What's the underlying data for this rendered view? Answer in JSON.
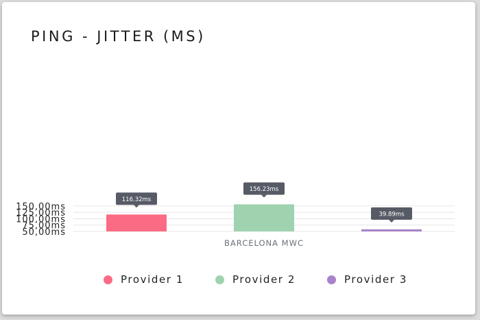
{
  "title": "PING - JITTER (MS)",
  "chart_data": {
    "type": "bar",
    "title": "PING - JITTER (MS)",
    "xlabel": "",
    "ylabel": "",
    "categories": [
      "BARCELONA MWC"
    ],
    "series": [
      {
        "name": "Provider 1",
        "values": [
          116.32
        ],
        "label": "116.32ms",
        "color": "#fb6b84"
      },
      {
        "name": "Provider 2",
        "values": [
          156.23
        ],
        "label": "156.23ms",
        "color": "#9fd3b0"
      },
      {
        "name": "Provider 3",
        "values": [
          39.89
        ],
        "label": "39.89ms",
        "color": "#a983c9"
      }
    ],
    "ylim": [
      50,
      175
    ],
    "yticks": [
      50,
      75,
      100,
      125,
      150
    ],
    "ytick_labels": [
      "50,00ms",
      "75,00ms",
      "100,00ms",
      "125,00ms",
      "150,00ms"
    ],
    "grid": true,
    "legend": "bottom"
  }
}
